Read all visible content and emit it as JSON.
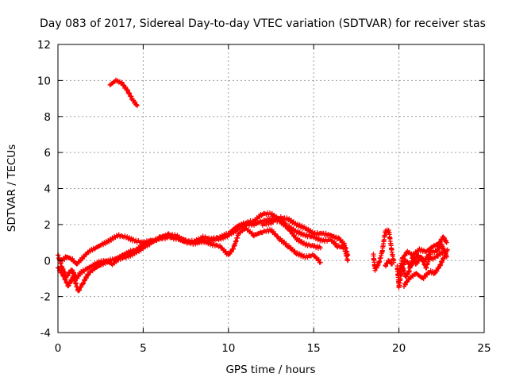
{
  "chart_data": {
    "type": "scatter",
    "title": "Day 083 of 2017, Sidereal Day-to-day VTEC variation (SDTVAR) for receiver stas",
    "xlabel": "GPS time / hours",
    "ylabel": "SDTVAR / TECUs",
    "xlim": [
      0,
      25
    ],
    "ylim": [
      -4,
      12
    ],
    "xticks": [
      0,
      5,
      10,
      15,
      20,
      25
    ],
    "yticks": [
      -4,
      -2,
      0,
      2,
      4,
      6,
      8,
      10,
      12
    ],
    "grid": true,
    "marker": "+",
    "series": [
      {
        "name": "SDTVAR",
        "color": "#ff0000",
        "tracks": [
          [
            [
              3.05,
              9.75
            ],
            [
              3.4,
              10.0
            ],
            [
              3.75,
              9.85
            ],
            [
              4.1,
              9.4
            ],
            [
              4.4,
              8.9
            ],
            [
              4.65,
              8.6
            ]
          ],
          [
            [
              0.0,
              0.3
            ],
            [
              0.25,
              -0.4
            ],
            [
              0.5,
              -0.9
            ],
            [
              0.8,
              -0.5
            ],
            [
              1.1,
              -1.0
            ],
            [
              1.3,
              -0.7
            ],
            [
              1.6,
              -0.5
            ],
            [
              2.0,
              -0.3
            ],
            [
              2.4,
              -0.1
            ],
            [
              2.8,
              0.0
            ],
            [
              3.2,
              -0.2
            ],
            [
              3.6,
              0.1
            ],
            [
              4.0,
              0.2
            ],
            [
              4.5,
              0.4
            ],
            [
              5.0,
              0.7
            ],
            [
              5.5,
              1.0
            ],
            [
              6.0,
              1.3
            ],
            [
              6.5,
              1.45
            ],
            [
              7.0,
              1.35
            ],
            [
              7.5,
              1.1
            ],
            [
              8.0,
              1.0
            ],
            [
              8.5,
              1.05
            ],
            [
              9.0,
              1.15
            ],
            [
              9.5,
              1.2
            ],
            [
              10.0,
              1.4
            ],
            [
              10.5,
              1.7
            ],
            [
              11.0,
              2.0
            ],
            [
              11.5,
              2.0
            ],
            [
              12.0,
              2.2
            ],
            [
              12.5,
              2.3
            ],
            [
              13.0,
              2.2
            ],
            [
              13.5,
              1.8
            ],
            [
              14.0,
              1.2
            ],
            [
              14.5,
              0.9
            ],
            [
              15.0,
              0.8
            ],
            [
              15.4,
              0.7
            ]
          ],
          [
            [
              0.0,
              -0.4
            ],
            [
              0.3,
              -0.8
            ],
            [
              0.6,
              -1.4
            ],
            [
              0.9,
              -0.9
            ],
            [
              1.2,
              -1.7
            ],
            [
              1.5,
              -1.2
            ],
            [
              1.8,
              -0.7
            ],
            [
              2.2,
              -0.4
            ],
            [
              2.6,
              -0.2
            ],
            [
              3.0,
              0.0
            ],
            [
              3.4,
              0.1
            ],
            [
              3.8,
              0.3
            ],
            [
              4.2,
              0.5
            ],
            [
              4.6,
              0.6
            ],
            [
              5.0,
              0.9
            ],
            [
              5.5,
              1.1
            ],
            [
              6.0,
              1.2
            ],
            [
              6.5,
              1.3
            ],
            [
              7.0,
              1.25
            ],
            [
              7.5,
              1.0
            ],
            [
              8.0,
              0.95
            ],
            [
              8.5,
              1.1
            ],
            [
              9.0,
              0.9
            ],
            [
              9.5,
              0.8
            ],
            [
              10.0,
              0.3
            ],
            [
              10.3,
              0.7
            ],
            [
              10.6,
              1.5
            ],
            [
              11.0,
              1.8
            ],
            [
              11.5,
              1.4
            ],
            [
              12.0,
              1.6
            ],
            [
              12.5,
              1.7
            ],
            [
              13.0,
              1.2
            ],
            [
              13.5,
              0.8
            ],
            [
              14.0,
              0.4
            ],
            [
              14.5,
              0.2
            ],
            [
              15.0,
              0.3
            ],
            [
              15.4,
              -0.1
            ]
          ],
          [
            [
              0.2,
              0.0
            ],
            [
              0.5,
              0.2
            ],
            [
              0.8,
              0.1
            ],
            [
              1.1,
              -0.2
            ],
            [
              1.4,
              0.1
            ],
            [
              1.8,
              0.5
            ],
            [
              2.2,
              0.7
            ],
            [
              2.6,
              0.9
            ],
            [
              3.0,
              1.1
            ],
            [
              3.5,
              1.4
            ],
            [
              4.0,
              1.3
            ],
            [
              4.5,
              1.1
            ],
            [
              5.0,
              1.0
            ],
            [
              5.5,
              1.1
            ],
            [
              6.0,
              1.2
            ],
            [
              6.5,
              1.3
            ],
            [
              7.0,
              1.2
            ],
            [
              7.5,
              1.1
            ],
            [
              8.0,
              1.05
            ],
            [
              8.5,
              1.3
            ],
            [
              9.0,
              1.2
            ],
            [
              9.5,
              1.3
            ],
            [
              10.0,
              1.5
            ],
            [
              10.5,
              1.9
            ],
            [
              11.0,
              2.1
            ],
            [
              11.5,
              2.2
            ],
            [
              12.0,
              2.6
            ],
            [
              12.5,
              2.6
            ],
            [
              13.0,
              2.3
            ],
            [
              13.5,
              1.9
            ],
            [
              14.0,
              1.6
            ],
            [
              14.5,
              1.4
            ],
            [
              15.0,
              1.3
            ],
            [
              15.5,
              1.1
            ],
            [
              16.0,
              1.15
            ],
            [
              16.4,
              0.8
            ],
            [
              16.8,
              0.7
            ],
            [
              17.0,
              0.0
            ]
          ],
          [
            [
              12.0,
              2.0
            ],
            [
              12.5,
              2.1
            ],
            [
              13.0,
              2.4
            ],
            [
              13.5,
              2.3
            ],
            [
              14.0,
              2.0
            ],
            [
              14.5,
              1.8
            ],
            [
              15.0,
              1.5
            ],
            [
              15.5,
              1.5
            ],
            [
              16.0,
              1.4
            ],
            [
              16.5,
              1.2
            ],
            [
              16.8,
              0.9
            ],
            [
              17.0,
              0.3
            ]
          ],
          [
            [
              18.5,
              0.3
            ],
            [
              18.6,
              -0.5
            ],
            [
              18.8,
              -0.2
            ],
            [
              19.0,
              0.4
            ],
            [
              19.2,
              1.6
            ],
            [
              19.4,
              1.7
            ],
            [
              19.6,
              0.4
            ],
            [
              19.7,
              -0.1
            ]
          ],
          [
            [
              19.2,
              -0.3
            ],
            [
              19.4,
              0.0
            ],
            [
              19.6,
              -0.2
            ]
          ],
          [
            [
              19.9,
              -0.3
            ],
            [
              20.0,
              -1.5
            ],
            [
              20.2,
              -0.3
            ],
            [
              20.4,
              -0.9
            ],
            [
              20.6,
              -0.6
            ],
            [
              20.8,
              0.2
            ],
            [
              21.0,
              -0.2
            ],
            [
              21.3,
              0.2
            ],
            [
              21.6,
              -0.4
            ],
            [
              21.8,
              0.2
            ],
            [
              22.0,
              0.1
            ],
            [
              22.3,
              0.3
            ],
            [
              22.6,
              0.5
            ],
            [
              22.8,
              0.5
            ]
          ],
          [
            [
              20.0,
              -0.8
            ],
            [
              20.2,
              0.1
            ],
            [
              20.5,
              0.5
            ],
            [
              20.8,
              0.3
            ],
            [
              21.2,
              0.6
            ],
            [
              21.6,
              0.5
            ],
            [
              22.0,
              0.8
            ],
            [
              22.3,
              0.9
            ],
            [
              22.6,
              1.3
            ],
            [
              22.8,
              1.0
            ]
          ],
          [
            [
              20.1,
              -0.5
            ],
            [
              20.4,
              0.0
            ],
            [
              20.7,
              -0.3
            ],
            [
              21.1,
              0.3
            ],
            [
              21.5,
              0.0
            ],
            [
              21.9,
              0.5
            ],
            [
              22.2,
              0.5
            ],
            [
              22.5,
              0.9
            ],
            [
              22.8,
              0.2
            ]
          ],
          [
            [
              20.3,
              -1.4
            ],
            [
              20.6,
              -1.0
            ],
            [
              21.0,
              -0.7
            ],
            [
              21.4,
              -1.0
            ],
            [
              21.8,
              -0.6
            ],
            [
              22.1,
              -0.7
            ],
            [
              22.4,
              -0.3
            ],
            [
              22.7,
              0.3
            ],
            [
              22.85,
              0.6
            ]
          ]
        ]
      }
    ]
  }
}
